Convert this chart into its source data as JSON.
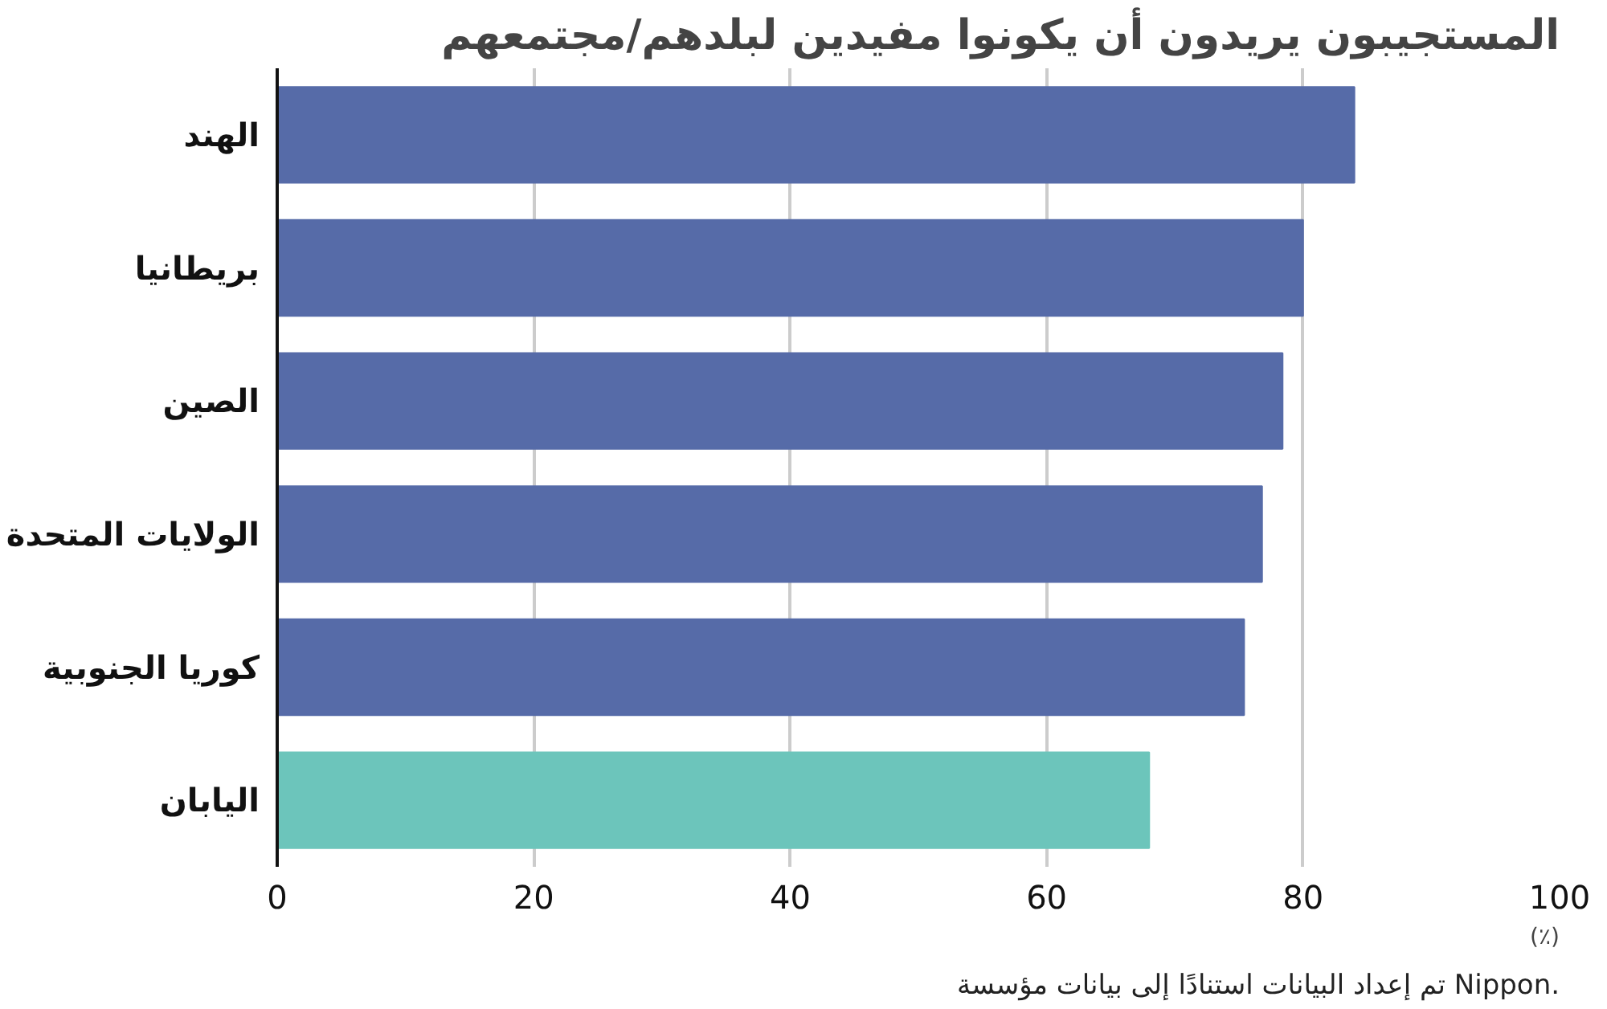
{
  "chart_data": {
    "type": "bar",
    "orientation": "horizontal",
    "title": "المستجيبون يريدون أن يكونوا مفيدين لبلدهم/مجتمعهم",
    "xlabel": "(٪)",
    "categories": [
      "الهند",
      "بريطانيا",
      "الصين",
      "الولايات المتحدة",
      "كوريا الجنوبية",
      "اليابان"
    ],
    "values": [
      84,
      80,
      78.4,
      76.8,
      75.4,
      68
    ],
    "colors": [
      "#566ba8",
      "#566ba8",
      "#566ba8",
      "#566ba8",
      "#566ba8",
      "#6cc5bb"
    ],
    "xlim": [
      0,
      100
    ],
    "xticks": [
      0,
      20,
      40,
      60,
      80,
      100
    ],
    "grid": "x",
    "annotations": [
      "تم إعداد البيانات استنادًا إلى بيانات مؤسسة Nippon."
    ]
  }
}
